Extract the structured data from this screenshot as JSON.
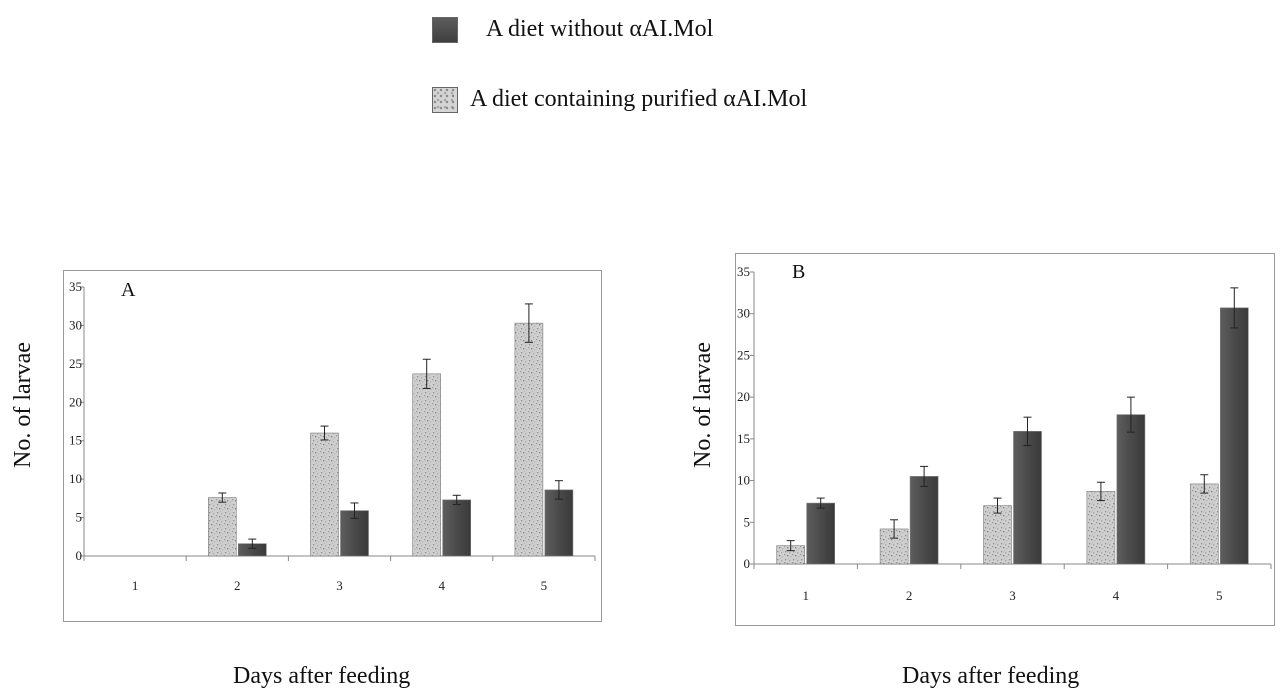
{
  "legend": {
    "items": [
      {
        "label": "A diet without αAI.Mol",
        "pattern": "dark"
      },
      {
        "label": "A diet containing purified αAI.Mol",
        "pattern": "speckle"
      }
    ]
  },
  "colors": {
    "dark_bar": "#4a4a4a",
    "speckle_bar": "#cfcfcf",
    "axis": "#888888",
    "frame": "#9a9a9a"
  },
  "chart_data": [
    {
      "type": "bar",
      "panel_label": "A",
      "categories": [
        "1",
        "2",
        "3",
        "4",
        "5"
      ],
      "ylim": [
        0,
        35
      ],
      "yticks": [
        0,
        5,
        10,
        15,
        20,
        25,
        30,
        35
      ],
      "xlabel": "Days after feeding",
      "ylabel": "No. of larvae",
      "series": [
        {
          "pattern": "speckle",
          "values": [
            0,
            7.6,
            16.0,
            23.7,
            30.3
          ],
          "errors": [
            0,
            0.6,
            0.9,
            1.9,
            2.5
          ]
        },
        {
          "pattern": "dark",
          "values": [
            0,
            1.6,
            5.9,
            7.3,
            8.6
          ],
          "errors": [
            0,
            0.6,
            1.0,
            0.6,
            1.2
          ]
        }
      ]
    },
    {
      "type": "bar",
      "panel_label": "B",
      "categories": [
        "1",
        "2",
        "3",
        "4",
        "5"
      ],
      "ylim": [
        0,
        35
      ],
      "yticks": [
        0,
        5,
        10,
        15,
        20,
        25,
        30,
        35
      ],
      "xlabel": "Days after feeding",
      "ylabel": "No. of larvae",
      "series": [
        {
          "pattern": "speckle",
          "values": [
            2.2,
            4.2,
            7.0,
            8.7,
            9.6
          ],
          "errors": [
            0.6,
            1.1,
            0.9,
            1.1,
            1.1
          ]
        },
        {
          "pattern": "dark",
          "values": [
            7.3,
            10.5,
            15.9,
            17.9,
            30.7
          ],
          "errors": [
            0.6,
            1.2,
            1.7,
            2.1,
            2.4
          ]
        }
      ]
    }
  ]
}
